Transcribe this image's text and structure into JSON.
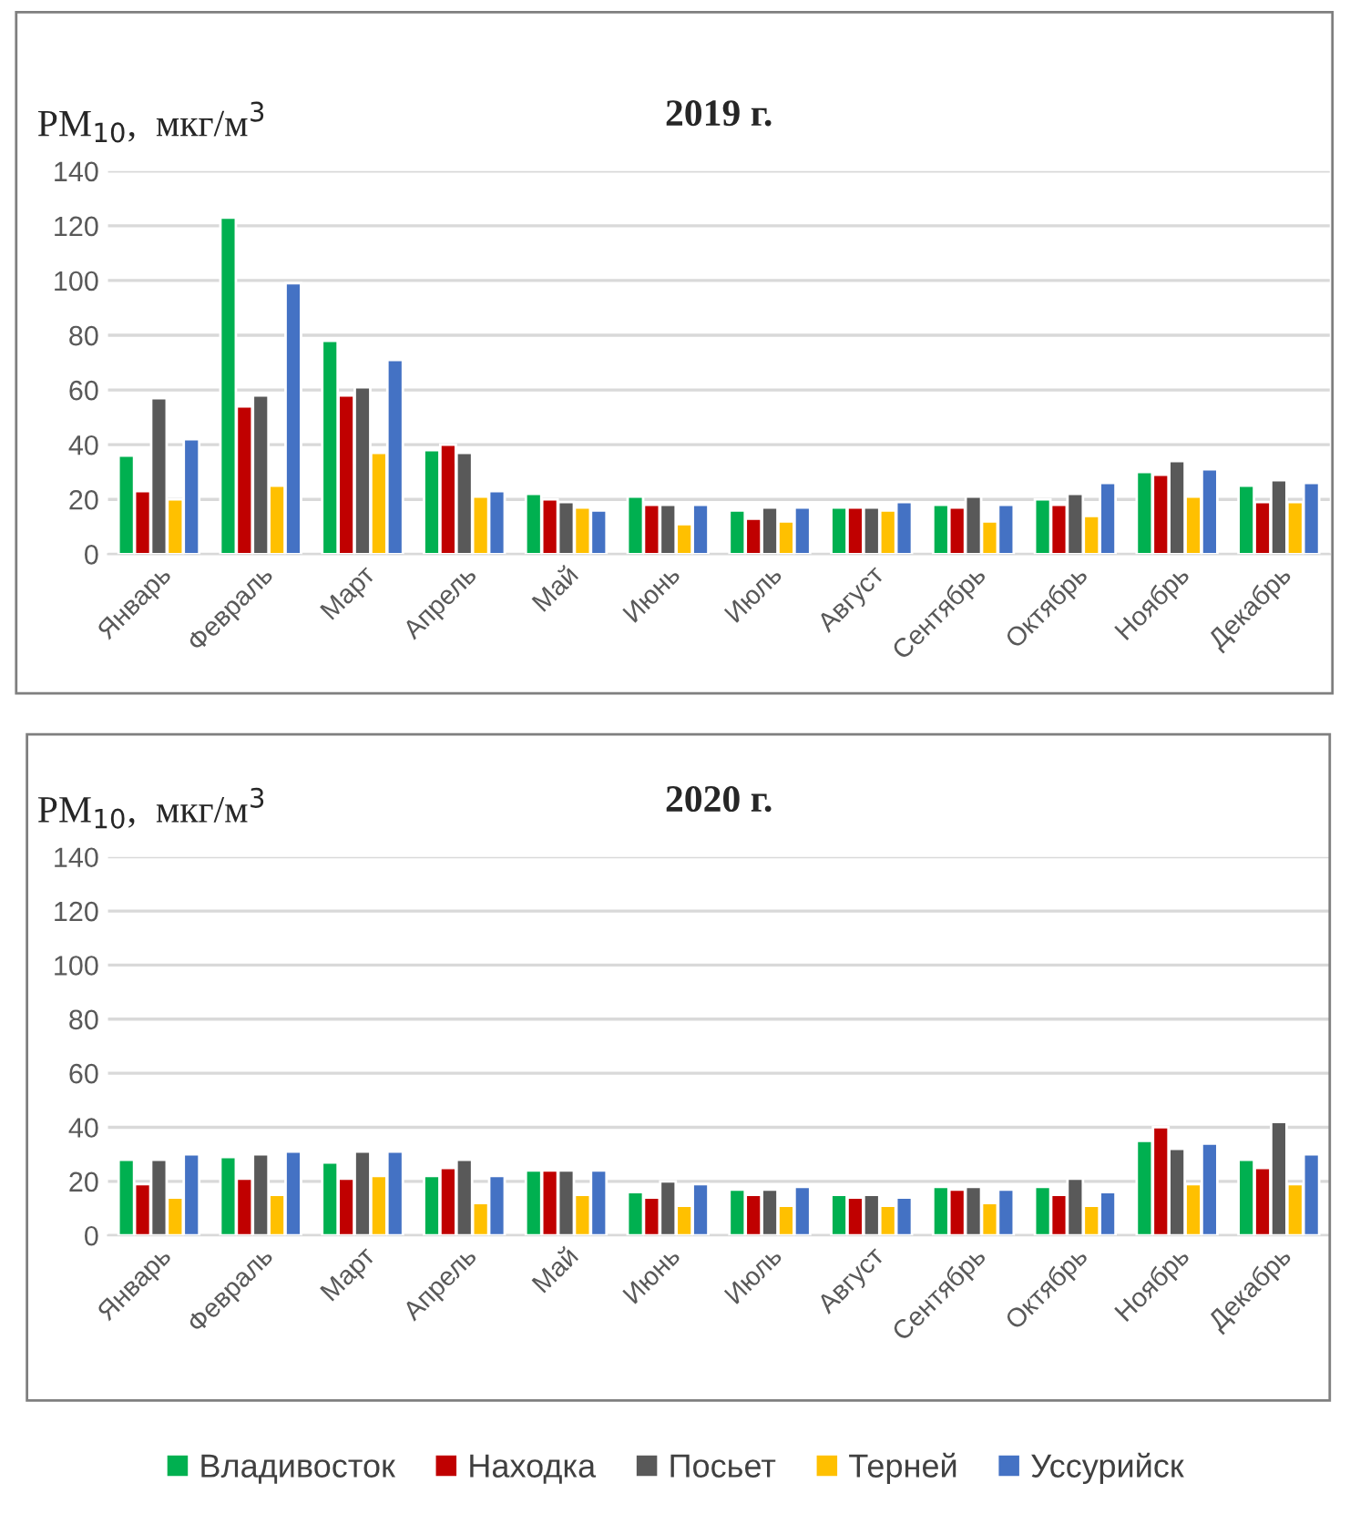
{
  "chart_data": [
    {
      "type": "bar",
      "title": "2019 г.",
      "ylabel": "PM$_{10}$,  мкг/м$^{3}$",
      "categories": [
        "Январь",
        "Февраль",
        "Март",
        "Апрель",
        "Май",
        "Июнь",
        "Июль",
        "Август",
        "Сентябрь",
        "Октябрь",
        "Ноябрь",
        "Декабрь"
      ],
      "series": [
        {
          "name": "Владивосток",
          "color": "#00b050",
          "values": [
            36,
            123,
            78,
            38,
            22,
            21,
            16,
            17,
            18,
            20,
            30,
            25
          ]
        },
        {
          "name": "Находка",
          "color": "#c00000",
          "values": [
            23,
            54,
            58,
            40,
            20,
            18,
            13,
            17,
            17,
            18,
            29,
            19
          ]
        },
        {
          "name": "Посьет",
          "color": "#595959",
          "values": [
            57,
            58,
            61,
            37,
            19,
            18,
            17,
            17,
            21,
            22,
            34,
            27
          ]
        },
        {
          "name": "Терней",
          "color": "#ffc000",
          "values": [
            20,
            25,
            37,
            21,
            17,
            11,
            12,
            16,
            12,
            14,
            21,
            19
          ]
        },
        {
          "name": "Уссурийск",
          "color": "#4472c4",
          "values": [
            42,
            99,
            71,
            23,
            16,
            18,
            17,
            19,
            18,
            26,
            31,
            26
          ]
        }
      ],
      "ylim": [
        0,
        140
      ],
      "yticks": [
        0,
        20,
        40,
        60,
        80,
        100,
        120,
        140
      ],
      "grid": "y",
      "legend": "bottom"
    },
    {
      "type": "bar",
      "title": "2020 г.",
      "ylabel": "PM$_{10}$,  мкг/м$^{3}$",
      "categories": [
        "Январь",
        "Февраль",
        "Март",
        "Апрель",
        "Май",
        "Июнь",
        "Июль",
        "Август",
        "Сентябрь",
        "Октябрь",
        "Ноябрь",
        "Декабрь"
      ],
      "series": [
        {
          "color": "#00b050",
          "values": [
            28,
            29,
            27,
            22,
            24,
            16,
            17,
            15,
            18,
            18,
            35,
            28
          ]
        },
        {
          "color": "#c00000",
          "values": [
            19,
            21,
            21,
            25,
            24,
            14,
            15,
            14,
            17,
            15,
            40,
            25
          ]
        },
        {
          "color": "#595959",
          "values": [
            28,
            30,
            31,
            28,
            24,
            20,
            17,
            15,
            18,
            21,
            32,
            42
          ]
        },
        {
          "color": "#ffc000",
          "values": [
            14,
            15,
            22,
            12,
            15,
            11,
            11,
            11,
            12,
            11,
            19,
            19
          ]
        },
        {
          "color": "#4472c4",
          "values": [
            30,
            31,
            31,
            22,
            24,
            19,
            18,
            14,
            17,
            16,
            34,
            30
          ]
        }
      ],
      "ylim": [
        0,
        140
      ],
      "yticks": [
        0,
        20,
        40,
        60,
        80,
        100,
        120,
        140
      ],
      "grid": "y"
    }
  ]
}
